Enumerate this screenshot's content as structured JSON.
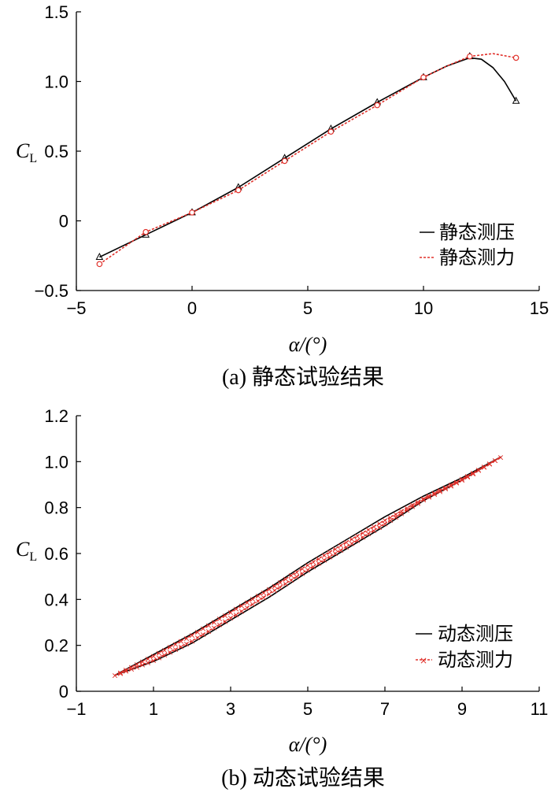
{
  "chart_data": [
    {
      "type": "line",
      "caption": "(a) 静态试验结果",
      "xlabel": "α/(°)",
      "ylabel_main": "C",
      "ylabel_sub": "L",
      "xlim": [
        -5,
        15
      ],
      "ylim": [
        -0.5,
        1.5
      ],
      "xticks": [
        -5,
        0,
        5,
        10,
        15
      ],
      "xtick_labels": [
        "−5",
        "0",
        "5",
        "10",
        "15"
      ],
      "yticks": [
        -0.5,
        0,
        0.5,
        1.0,
        1.5
      ],
      "ytick_labels": [
        "−0.5",
        "0",
        "0.5",
        "1.0",
        "1.5"
      ],
      "legend_position": "lower-right",
      "series": [
        {
          "name": "静态测压",
          "color": "#000000",
          "dash": "solid",
          "marker": "triangle",
          "x": [
            -4,
            -2,
            0,
            2,
            4,
            6,
            8,
            10,
            12,
            14
          ],
          "y": [
            -0.26,
            -0.1,
            0.06,
            0.24,
            0.45,
            0.66,
            0.85,
            1.03,
            1.18,
            0.86
          ],
          "curve_x": [
            -4,
            -2,
            0,
            2,
            4,
            6,
            8,
            10,
            11,
            12,
            12.5,
            13,
            13.5,
            14
          ],
          "curve_y": [
            -0.26,
            -0.1,
            0.06,
            0.24,
            0.45,
            0.66,
            0.85,
            1.03,
            1.11,
            1.17,
            1.16,
            1.1,
            1.0,
            0.86
          ]
        },
        {
          "name": "静态测力",
          "color": "#e0302a",
          "dash": "dashed",
          "marker": "circle",
          "x": [
            -4,
            -2,
            0,
            2,
            4,
            6,
            8,
            10,
            12,
            14
          ],
          "y": [
            -0.31,
            -0.08,
            0.06,
            0.22,
            0.43,
            0.64,
            0.83,
            1.03,
            1.18,
            1.17
          ],
          "curve_x": [
            -4,
            -2,
            0,
            2,
            4,
            6,
            8,
            10,
            11,
            12,
            13,
            14
          ],
          "curve_y": [
            -0.31,
            -0.08,
            0.06,
            0.22,
            0.43,
            0.64,
            0.83,
            1.03,
            1.11,
            1.18,
            1.2,
            1.17
          ]
        }
      ]
    },
    {
      "type": "line",
      "caption": "(b) 动态试验结果",
      "xlabel": "α/(°)",
      "ylabel_main": "C",
      "ylabel_sub": "L",
      "xlim": [
        -1,
        11
      ],
      "ylim": [
        0,
        1.2
      ],
      "xticks": [
        -1,
        1,
        3,
        5,
        7,
        9,
        11
      ],
      "xtick_labels": [
        "−1",
        "1",
        "3",
        "5",
        "7",
        "9",
        "11"
      ],
      "yticks": [
        0,
        0.2,
        0.4,
        0.6,
        0.8,
        1.0,
        1.2
      ],
      "ytick_labels": [
        "0",
        "0.2",
        "0.4",
        "0.6",
        "0.8",
        "1.0",
        "1.2"
      ],
      "legend_position": "lower-right",
      "series": [
        {
          "name": "动态测压",
          "color": "#000000",
          "dash": "solid",
          "marker": "none",
          "x": [
            0,
            1,
            2,
            3,
            4,
            5,
            6,
            7,
            8,
            9,
            10,
            9,
            8,
            7,
            6,
            5,
            4,
            3,
            2,
            1,
            0
          ],
          "y": [
            0.07,
            0.16,
            0.25,
            0.35,
            0.45,
            0.56,
            0.66,
            0.76,
            0.85,
            0.93,
            1.02,
            0.92,
            0.83,
            0.72,
            0.62,
            0.52,
            0.41,
            0.31,
            0.21,
            0.13,
            0.07
          ]
        },
        {
          "name": "动态测力",
          "color": "#e0302a",
          "dash": "dashed",
          "marker": "x",
          "x": [
            0,
            1,
            2,
            3,
            4,
            5,
            6,
            7,
            8,
            9,
            10,
            9,
            8,
            7,
            6,
            5,
            4,
            3,
            2,
            1,
            0
          ],
          "y": [
            0.07,
            0.155,
            0.245,
            0.345,
            0.445,
            0.55,
            0.65,
            0.745,
            0.84,
            0.925,
            1.02,
            0.92,
            0.835,
            0.73,
            0.63,
            0.53,
            0.425,
            0.32,
            0.22,
            0.135,
            0.07
          ]
        }
      ]
    }
  ]
}
